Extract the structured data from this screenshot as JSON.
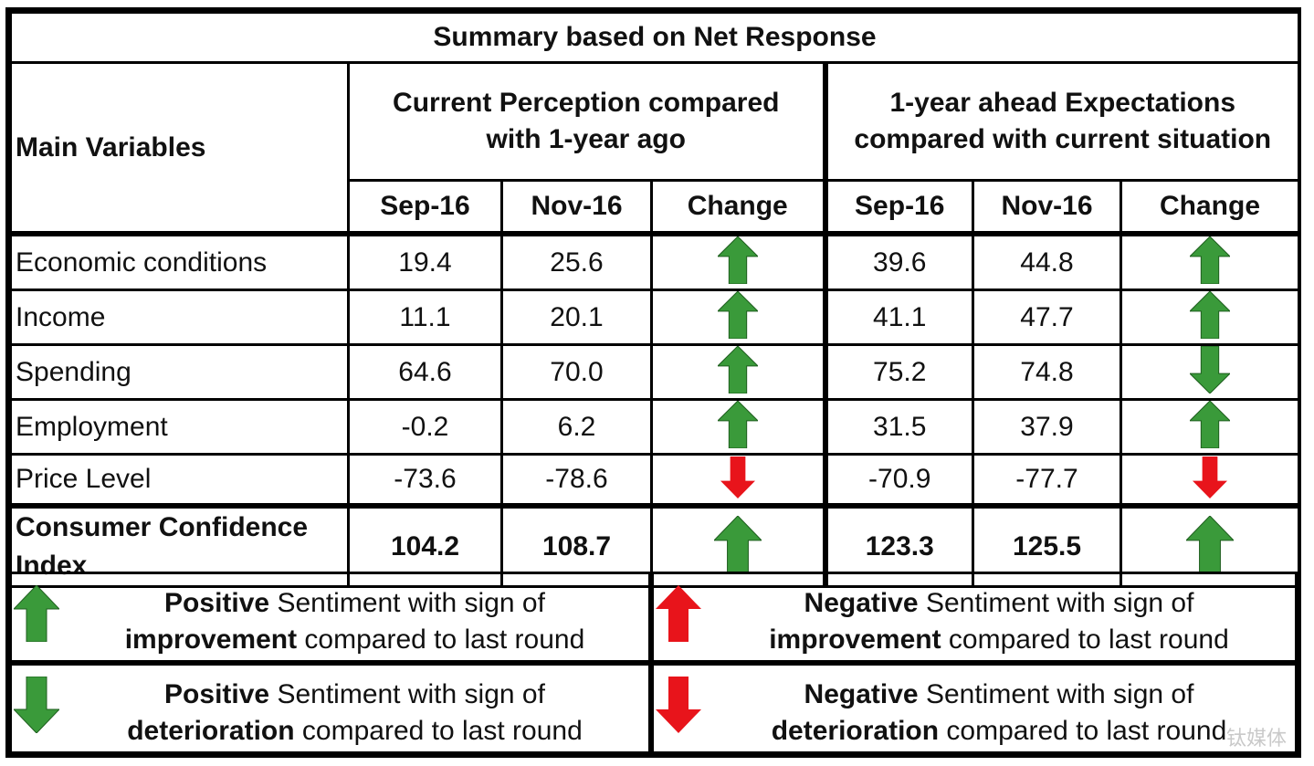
{
  "title": "Summary based on Net Response",
  "headers": {
    "main_variables": "Main Variables",
    "current_group": "Current Perception compared with 1-year ago",
    "expect_group": "1-year ahead Expectations compared with current situation",
    "sep": "Sep-16",
    "nov": "Nov-16",
    "change": "Change"
  },
  "rows": [
    {
      "label": "Economic conditions",
      "c_sep": "19.4",
      "c_nov": "25.6",
      "c_change": "up-green",
      "e_sep": "39.6",
      "e_nov": "44.8",
      "e_change": "up-green"
    },
    {
      "label": "Income",
      "c_sep": "11.1",
      "c_nov": "20.1",
      "c_change": "up-green",
      "e_sep": "41.1",
      "e_nov": "47.7",
      "e_change": "up-green"
    },
    {
      "label": "Spending",
      "c_sep": "64.6",
      "c_nov": "70.0",
      "c_change": "up-green",
      "e_sep": "75.2",
      "e_nov": "74.8",
      "e_change": "down-green"
    },
    {
      "label": "Employment",
      "c_sep": "-0.2",
      "c_nov": "6.2",
      "c_change": "up-green",
      "e_sep": "31.5",
      "e_nov": "37.9",
      "e_change": "up-green"
    },
    {
      "label": "Price Level",
      "c_sep": "-73.6",
      "c_nov": "-78.6",
      "c_change": "down-red",
      "e_sep": "-70.9",
      "e_nov": "-77.7",
      "e_change": "down-red"
    }
  ],
  "cci": {
    "label": "Consumer Confidence Index",
    "c_sep": "104.2",
    "c_nov": "108.7",
    "c_change": "up-green",
    "e_sep": "123.3",
    "e_nov": "125.5",
    "e_change": "up-green"
  },
  "legend": {
    "pos_imp": {
      "b1": "Positive",
      "t1": " Sentiment with sign of",
      "b2": "improvement",
      "t2": " compared to last round"
    },
    "neg_imp": {
      "b1": "Negative",
      "t1": " Sentiment with sign of",
      "b2": "improvement",
      "t2": " compared to last round"
    },
    "pos_det": {
      "b1": "Positive",
      "t1": " Sentiment with sign of",
      "b2": "deterioration",
      "t2": " compared to last round"
    },
    "neg_det": {
      "b1": "Negative",
      "t1": " Sentiment with sign of",
      "b2": "deterioration",
      "t2": " compared to last round"
    }
  },
  "watermark": "钛媒体",
  "colors": {
    "green": "#3a9a3a",
    "red": "#e8141b"
  }
}
